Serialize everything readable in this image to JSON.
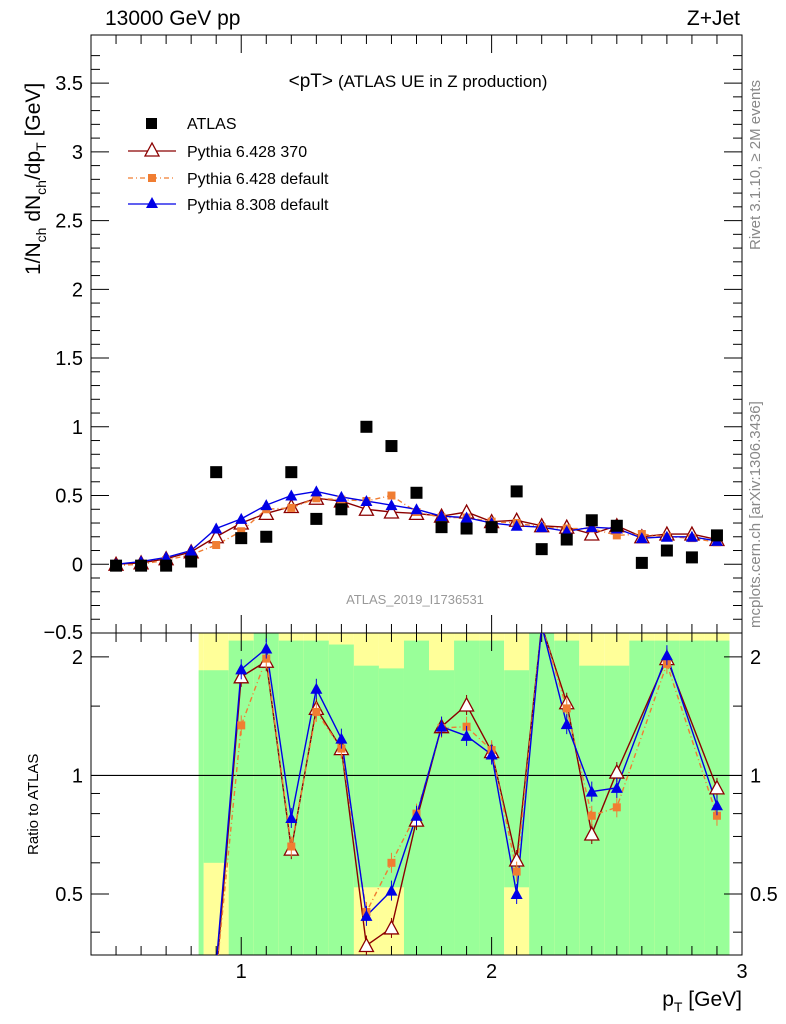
{
  "header": {
    "left": "13000 GeV pp",
    "right": "Z+Jet"
  },
  "side_labels": {
    "rivet": "Rivet 3.1.10, ≥ 2M events",
    "mcplots": "mcplots.cern.ch [arXiv:1306.3436]"
  },
  "analysis_label": "ATLAS_2019_I1736531",
  "colors": {
    "data": "#000000",
    "p6_370": "#8b0000",
    "p6_default": "#f07d32",
    "p8_default": "#0000e6",
    "band_green": "#99ff99",
    "band_yellow": "#ffff99"
  },
  "chart_data": [
    {
      "type": "line",
      "title": "<pT>",
      "subtitle": "(ATLAS UE in Z production)",
      "ylabel": "1/N_ch dN_ch/dp_T [GeV]",
      "xlim": [
        0.4,
        3.0
      ],
      "ylim": [
        -0.5,
        3.85
      ],
      "yticks": [
        0,
        0.5,
        1,
        1.5,
        2,
        2.5,
        3,
        3.5
      ],
      "ytick_labels": [
        "0",
        "0.5",
        "1",
        "1.5",
        "2",
        "2.5",
        "3",
        "3.5"
      ],
      "bottom_partial_label": "−0.5",
      "legend_position": "top-left",
      "x": [
        0.5,
        0.6,
        0.7,
        0.8,
        0.9,
        1.0,
        1.1,
        1.2,
        1.3,
        1.4,
        1.5,
        1.6,
        1.7,
        1.8,
        1.9,
        2.0,
        2.1,
        2.2,
        2.3,
        2.4,
        2.5,
        2.6,
        2.7,
        2.8,
        2.9
      ],
      "series": [
        {
          "name": "ATLAS",
          "marker": "square",
          "values": [
            -0.01,
            -0.01,
            -0.01,
            0.02,
            0.67,
            0.19,
            0.2,
            0.67,
            0.33,
            0.4,
            1.0,
            0.86,
            0.52,
            0.27,
            0.26,
            0.27,
            0.53,
            0.11,
            0.18,
            0.32,
            0.28,
            0.01,
            0.1,
            0.05,
            0.21
          ]
        },
        {
          "name": "Pythia 6.428 370",
          "marker": "open-triangle",
          "values": [
            0.0,
            0.01,
            0.04,
            0.09,
            0.2,
            0.3,
            0.37,
            0.42,
            0.48,
            0.46,
            0.4,
            0.38,
            0.37,
            0.35,
            0.38,
            0.31,
            0.32,
            0.28,
            0.27,
            0.22,
            0.28,
            0.2,
            0.22,
            0.22,
            0.18
          ]
        },
        {
          "name": "Pythia 6.428 default",
          "marker": "small-square",
          "values": [
            -0.01,
            0.0,
            0.03,
            0.07,
            0.14,
            0.24,
            0.4,
            0.41,
            0.48,
            0.47,
            0.46,
            0.5,
            0.38,
            0.34,
            0.34,
            0.31,
            0.3,
            0.27,
            0.26,
            0.26,
            0.21,
            0.22,
            0.2,
            0.19,
            0.16
          ]
        },
        {
          "name": "Pythia 8.308 default",
          "marker": "filled-triangle",
          "values": [
            0.0,
            0.02,
            0.05,
            0.1,
            0.26,
            0.33,
            0.43,
            0.5,
            0.53,
            0.49,
            0.46,
            0.43,
            0.4,
            0.35,
            0.34,
            0.3,
            0.28,
            0.27,
            0.24,
            0.27,
            0.26,
            0.19,
            0.2,
            0.2,
            0.17
          ]
        }
      ]
    },
    {
      "type": "line",
      "ylabel": "Ratio to ATLAS",
      "xlabel": "p_T [GeV]",
      "xlim": [
        0.4,
        3.0
      ],
      "ylim": [
        0.35,
        2.3
      ],
      "yscale": "log",
      "yticks": [
        0.5,
        1,
        2
      ],
      "ytick_labels": [
        "0.5",
        "1",
        "2"
      ],
      "xticks": [
        1,
        2,
        3
      ],
      "xtick_labels": [
        "1",
        "2",
        "3"
      ],
      "reference_line": 1,
      "x": [
        0.9,
        1.0,
        1.1,
        1.2,
        1.3,
        1.4,
        1.5,
        1.6,
        1.7,
        1.8,
        1.9,
        2.0,
        2.1,
        2.2,
        2.3,
        2.4,
        2.5,
        2.7,
        2.9
      ],
      "series": [
        {
          "name": "Pythia 6.428 370",
          "values": [
            0.3,
            1.78,
            1.95,
            0.65,
            1.48,
            1.17,
            0.37,
            0.41,
            0.77,
            1.33,
            1.51,
            1.15,
            0.61,
            2.4,
            1.53,
            0.71,
            1.02,
            1.98,
            0.93
          ]
        },
        {
          "name": "Pythia 6.428 default",
          "values": [
            0.21,
            1.34,
            1.98,
            0.66,
            1.45,
            1.17,
            0.45,
            0.6,
            0.8,
            1.32,
            1.33,
            1.16,
            0.57,
            2.4,
            1.48,
            0.79,
            0.83,
            1.92,
            0.79
          ]
        },
        {
          "name": "Pythia 8.308 default",
          "values": [
            0.33,
            1.86,
            2.1,
            0.78,
            1.66,
            1.24,
            0.44,
            0.51,
            0.79,
            1.33,
            1.26,
            1.13,
            0.5,
            2.4,
            1.35,
            0.91,
            0.93,
            2.02,
            0.84
          ]
        }
      ]
    }
  ]
}
